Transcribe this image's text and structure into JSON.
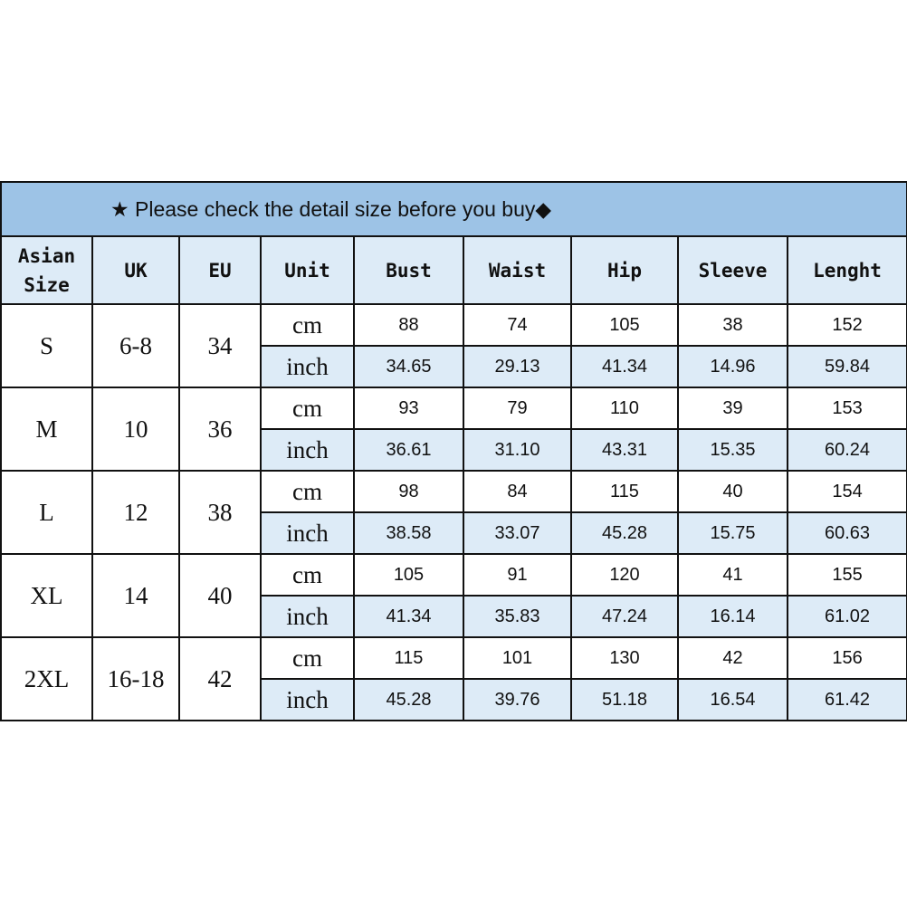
{
  "title": "★ Please check the detail size before you buy◆",
  "headers": [
    "Asian Size",
    "UK",
    "EU",
    "Unit",
    "Bust",
    "Waist",
    "Hip",
    "Sleeve",
    "Lenght"
  ],
  "colors": {
    "title_bg": "#9dc3e6",
    "header_bg": "#ddebf7",
    "inch_row_bg": "#ddebf7"
  },
  "rows": [
    {
      "asian": "S",
      "uk": "6-8",
      "eu": "34",
      "cm": [
        "88",
        "74",
        "105",
        "38",
        "152"
      ],
      "inch": [
        "34.65",
        "29.13",
        "41.34",
        "14.96",
        "59.84"
      ]
    },
    {
      "asian": "M",
      "uk": "10",
      "eu": "36",
      "cm": [
        "93",
        "79",
        "110",
        "39",
        "153"
      ],
      "inch": [
        "36.61",
        "31.10",
        "43.31",
        "15.35",
        "60.24"
      ]
    },
    {
      "asian": "L",
      "uk": "12",
      "eu": "38",
      "cm": [
        "98",
        "84",
        "115",
        "40",
        "154"
      ],
      "inch": [
        "38.58",
        "33.07",
        "45.28",
        "15.75",
        "60.63"
      ]
    },
    {
      "asian": "XL",
      "uk": "14",
      "eu": "40",
      "cm": [
        "105",
        "91",
        "120",
        "41",
        "155"
      ],
      "inch": [
        "41.34",
        "35.83",
        "47.24",
        "16.14",
        "61.02"
      ]
    },
    {
      "asian": "2XL",
      "uk": "16-18",
      "eu": "42",
      "cm": [
        "115",
        "101",
        "130",
        "42",
        "156"
      ],
      "inch": [
        "45.28",
        "39.76",
        "51.18",
        "16.54",
        "61.42"
      ]
    }
  ],
  "units": {
    "cm": "cm",
    "inch": "inch"
  }
}
